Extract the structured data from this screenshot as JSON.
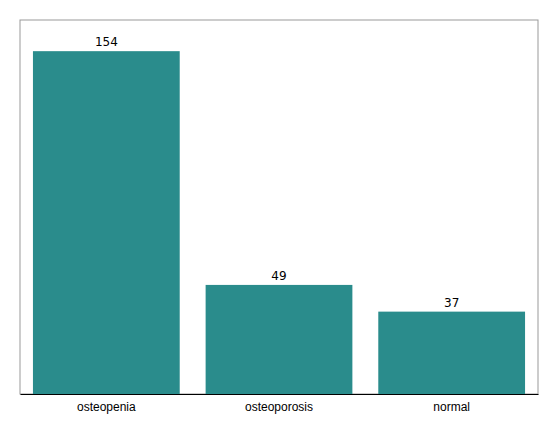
{
  "chart_data": {
    "type": "bar",
    "categories": [
      "osteopenia",
      "osteoporosis",
      "normal"
    ],
    "values": [
      154,
      49,
      37
    ],
    "color": "#2a8c8c",
    "ylim": [
      0,
      168
    ],
    "data_labels": true,
    "tick_labels": "x"
  }
}
